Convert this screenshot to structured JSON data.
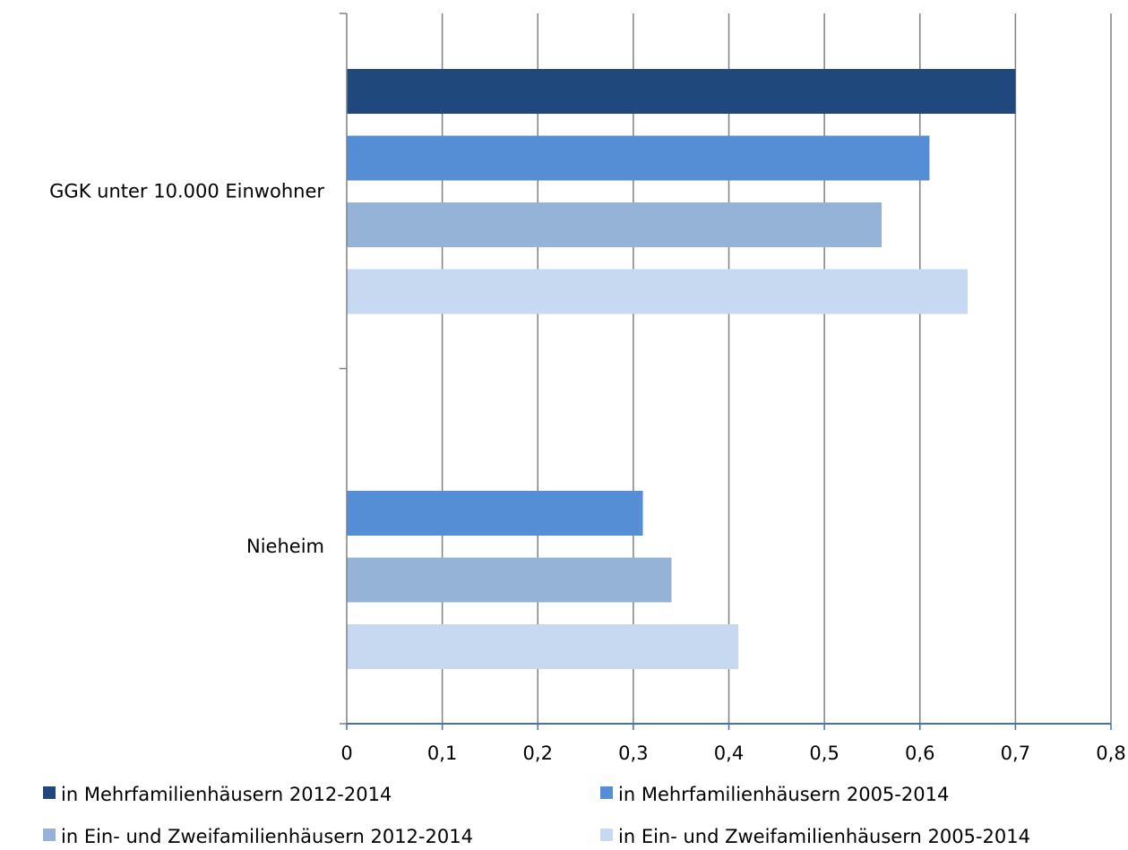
{
  "chart_data": {
    "type": "bar",
    "orientation": "horizontal",
    "categories": [
      "GGK unter 10.000 Einwohner",
      "Nieheim"
    ],
    "series": [
      {
        "name": "in Mehrfamilienhäusern 2012-2014",
        "color": "#1f497d",
        "values": [
          0.7,
          null
        ]
      },
      {
        "name": "in Mehrfamilienhäusern 2005-2014",
        "color": "#558ed5",
        "values": [
          0.61,
          0.31
        ]
      },
      {
        "name": "in Ein- und Zweifamilienhäusern 2012-2014",
        "color": "#95b3d7",
        "values": [
          0.56,
          0.34
        ]
      },
      {
        "name": "in Ein- und Zweifamilienhäusern 2005-2014",
        "color": "#c6d9f1",
        "values": [
          0.65,
          0.41
        ]
      }
    ],
    "xlim": [
      0,
      0.8
    ],
    "xticks": [
      0,
      0.1,
      0.2,
      0.3,
      0.4,
      0.5,
      0.6,
      0.7,
      0.8
    ],
    "xtick_labels": [
      "0",
      "0,1",
      "0,2",
      "0,3",
      "0,4",
      "0,5",
      "0,6",
      "0,7",
      "0,8"
    ],
    "grid": "vertical",
    "legend_position": "bottom",
    "axis_color": "#4472a8",
    "grid_color": "#808080"
  }
}
